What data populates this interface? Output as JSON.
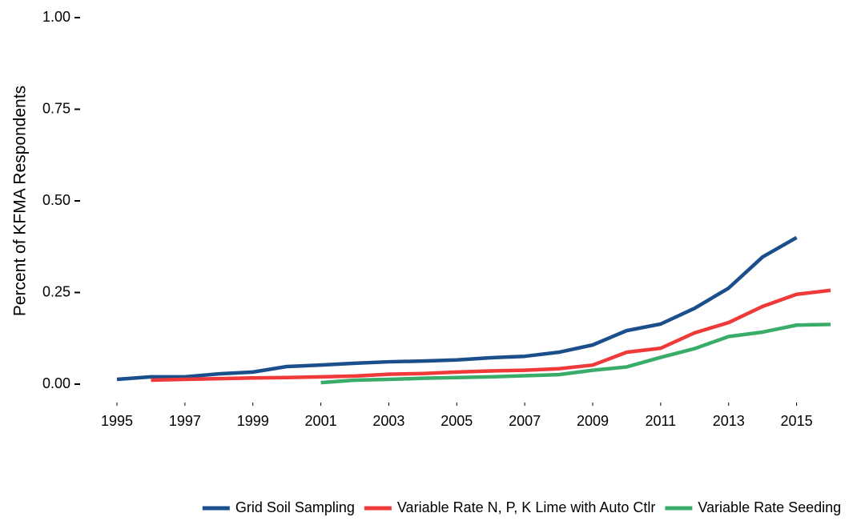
{
  "chart_data": {
    "type": "line",
    "y_label": "Percent of KFMA Respondents",
    "x": [
      1995,
      1996,
      1997,
      1998,
      1999,
      2000,
      2001,
      2002,
      2003,
      2004,
      2005,
      2006,
      2007,
      2008,
      2009,
      2010,
      2011,
      2012,
      2013,
      2014,
      2015,
      2016
    ],
    "series": [
      {
        "name": "Grid Soil Sampling",
        "color": "#1a4f8b",
        "values": [
          0.013,
          0.02,
          0.02,
          0.028,
          0.033,
          0.048,
          0.052,
          0.057,
          0.061,
          0.063,
          0.066,
          0.072,
          0.076,
          0.087,
          0.107,
          0.146,
          0.164,
          0.207,
          0.262,
          0.347,
          0.4,
          null
        ]
      },
      {
        "name": "Variable Rate N, P, K Lime with Auto Ctlr",
        "color": "#f03a3a",
        "values": [
          null,
          0.011,
          0.013,
          0.015,
          0.017,
          0.018,
          0.02,
          0.022,
          0.027,
          0.029,
          0.033,
          0.036,
          0.038,
          0.042,
          0.052,
          0.087,
          0.098,
          0.14,
          0.168,
          0.212,
          0.245,
          0.256
        ]
      },
      {
        "name": "Variable Rate Seeding",
        "color": "#3aac6a",
        "values": [
          null,
          null,
          null,
          null,
          null,
          null,
          0.004,
          0.011,
          0.013,
          0.016,
          0.018,
          0.02,
          0.023,
          0.026,
          0.038,
          0.047,
          0.073,
          0.097,
          0.13,
          0.142,
          0.161,
          0.163
        ]
      }
    ],
    "xlim": [
      1995,
      2016
    ],
    "xticks": [
      1995,
      1997,
      1999,
      2001,
      2003,
      2005,
      2007,
      2009,
      2011,
      2013,
      2015
    ],
    "ylim": [
      0,
      1
    ],
    "yticks": [
      {
        "value": 0,
        "label": "0.00"
      },
      {
        "value": 0.25,
        "label": "0.25"
      },
      {
        "value": 0.5,
        "label": "0.50"
      },
      {
        "value": 0.75,
        "label": "0.75"
      },
      {
        "value": 1,
        "label": "1.00"
      }
    ],
    "grid": false,
    "legend": "bottom"
  }
}
